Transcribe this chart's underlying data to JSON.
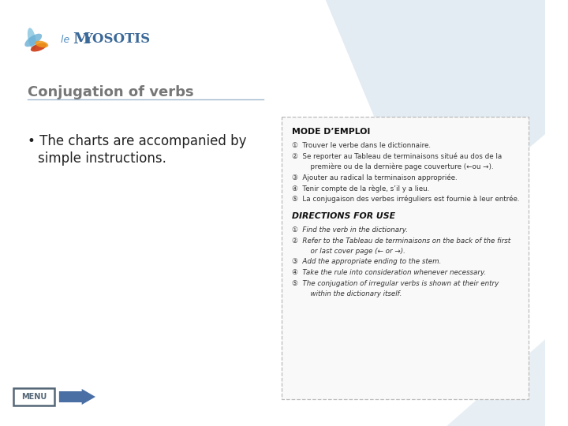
{
  "title": "Conjugation of verbs",
  "bullet_line1": "• The charts are accompanied by",
  "bullet_line2": "simple instructions.",
  "slide_bg": "#ffffff",
  "title_color": "#777777",
  "title_fontsize": 13,
  "bullet_fontsize": 12,
  "menu_text": "MENU",
  "menu_border_color": "#556677",
  "menu_text_color": "#556677",
  "arrow_color": "#4a6fa5",
  "line_color": "#a0b8cc",
  "box_border_color": "#bbbbbb",
  "deco_color": "#ccdde8",
  "mode_emploi_title": "MODE D’EMPLOI",
  "mode_emploi_items": [
    "①  Trouver le verbe dans le dictionnaire.",
    "②  Se reporter au Tableau de terminaisons situé au dos de la\n      première ou de la dernière page couverture (←ou →).",
    "③  Ajouter au radical la terminaison appropriée.",
    "④  Tenir compte de la règle, s’il y a lieu.",
    "⑤  La conjugaison des verbes irréguliers est fournie à leur entrée."
  ],
  "directions_title": "DIRECTIONS FOR USE",
  "directions_items": [
    "①  Find the verb in the dictionary.",
    "②  Refer to the Tableau de terminaisons on the back of the first\n      or last cover page (← or →).",
    "③  Add the appropriate ending to the stem.",
    "④  Take the rule into consideration whenever necessary.",
    "⑤  The conjugation of irregular verbs is shown at their entry\n      within the dictionary itself."
  ],
  "logo_le": "le",
  "logo_brand": "MYOSOTIS"
}
